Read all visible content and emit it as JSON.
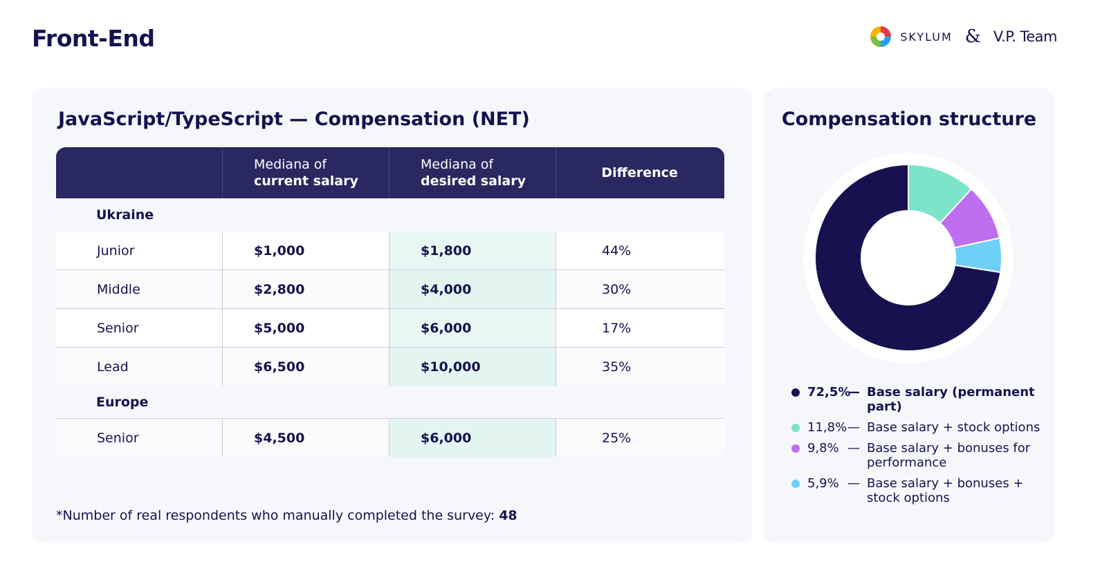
{
  "page": {
    "title": "Front-End"
  },
  "brand": {
    "name": "SKYLUM",
    "ampersand": "&",
    "partner": "V.P. Team"
  },
  "table_card": {
    "title": "JavaScript/TypeScript — Compensation (NET)",
    "headers": [
      {
        "line1": "",
        "line2": ""
      },
      {
        "line1": "Mediana of",
        "line2": "current salary"
      },
      {
        "line1": "Mediana of",
        "line2": "desired salary"
      },
      {
        "line1": "",
        "line2": "Difference"
      }
    ],
    "groups": [
      {
        "name": "Ukraine",
        "rows": [
          {
            "level": "Junior",
            "current": "$1,000",
            "desired": "$1,800",
            "difference": "44%"
          },
          {
            "level": "Middle",
            "current": "$2,800",
            "desired": "$4,000",
            "difference": "30%"
          },
          {
            "level": "Senior",
            "current": "$5,000",
            "desired": "$6,000",
            "difference": "17%"
          },
          {
            "level": "Lead",
            "current": "$6,500",
            "desired": "$10,000",
            "difference": "35%"
          }
        ]
      },
      {
        "name": "Europe",
        "rows": [
          {
            "level": "Senior",
            "current": "$4,500",
            "desired": "$6,000",
            "difference": "25%"
          }
        ]
      }
    ],
    "footnote_text": "*Number of real respondents who manually completed the survey: ",
    "footnote_count": "48"
  },
  "chart_data": {
    "type": "pie",
    "title": "Compensation structure",
    "series": [
      {
        "name": "Base salary (permanent part)",
        "value": 72.5,
        "label": "72,5%",
        "color": "#17124f"
      },
      {
        "name": "Base salary + stock options",
        "value": 11.8,
        "label": "11,8%",
        "color": "#7de4c9"
      },
      {
        "name": "Base salary + bonuses for performance",
        "value": 9.8,
        "label": "9,8%",
        "color": "#c06ef0"
      },
      {
        "name": "Base salary + bonuses + stock options",
        "value": 5.9,
        "label": "5,9%",
        "color": "#6ecff7"
      }
    ],
    "legend_separator": "—",
    "legend_position": "bottom"
  },
  "colors": {
    "navy": "#15124f",
    "header": "#2a2860",
    "card": "#f6f7fb",
    "desired_highlight": "#e8f7f3"
  }
}
